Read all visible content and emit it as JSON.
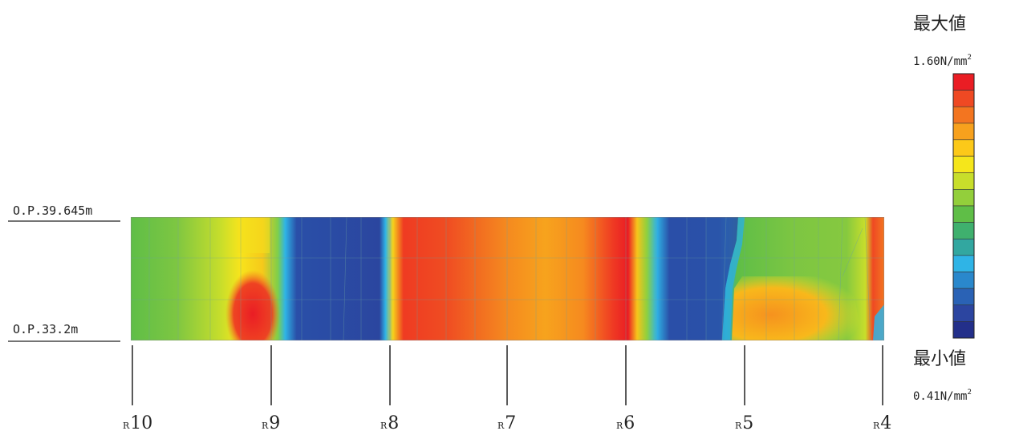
{
  "elevations": {
    "top": "O.P.39.645m",
    "bottom": "O.P.33.2m"
  },
  "legend": {
    "max_title": "最大値",
    "max_value": "1.60N/mm",
    "min_title": "最小値",
    "min_value": "0.41N/mm",
    "unit_superscript": "2",
    "scale_colors": [
      "#ea1d24",
      "#ef4923",
      "#f37520",
      "#f7a11d",
      "#fcc919",
      "#f5e61b",
      "#c8de2b",
      "#93cf3b",
      "#5fbe47",
      "#3fb06e",
      "#32a7a0",
      "#2fb4e6",
      "#2a88cc",
      "#2a62b5",
      "#2c45a0",
      "#232f8a"
    ]
  },
  "gridlines": [
    {
      "prefix": "R",
      "label": "10"
    },
    {
      "prefix": "R",
      "label": "9"
    },
    {
      "prefix": "R",
      "label": "8"
    },
    {
      "prefix": "R",
      "label": "7"
    },
    {
      "prefix": "R",
      "label": "6"
    },
    {
      "prefix": "R",
      "label": "5"
    },
    {
      "prefix": "R",
      "label": "4"
    }
  ]
}
